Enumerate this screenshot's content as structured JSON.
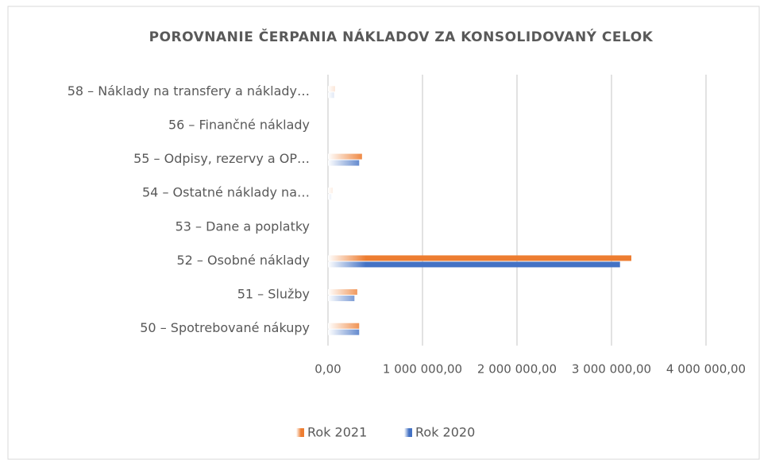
{
  "chart_data": {
    "type": "hbar",
    "title": "POROVNANIE ČERPANIA NÁKLADOV ZA KONSOLIDOVANÝ CELOK",
    "categories": [
      "58 – Náklady na transfery a náklady…",
      "56 – Finančné náklady",
      "55 – Odpisy, rezervy a OP…",
      "54 – Ostatné náklady na…",
      "53 – Dane a poplatky",
      "52 – Osobné náklady",
      "51 – Služby",
      "50 – Spotrebované nákupy"
    ],
    "series": [
      {
        "name": "Rok 2021",
        "color": "#ed7d31",
        "values": [
          75000,
          0,
          360000,
          50000,
          0,
          3210000,
          310000,
          330000
        ]
      },
      {
        "name": "Rok 2020",
        "color": "#4472c4",
        "values": [
          65000,
          0,
          330000,
          35000,
          0,
          3090000,
          280000,
          330000
        ]
      }
    ],
    "xlim": [
      0,
      4000000
    ],
    "xticks": [
      {
        "value": 0,
        "label": "0,00"
      },
      {
        "value": 1000000,
        "label": "1 000 000,00"
      },
      {
        "value": 2000000,
        "label": "2 000 000,00"
      },
      {
        "value": 3000000,
        "label": "3 000 000,00"
      },
      {
        "value": 4000000,
        "label": "4 000 000,00"
      }
    ],
    "grid": true,
    "legend": "bottom"
  }
}
